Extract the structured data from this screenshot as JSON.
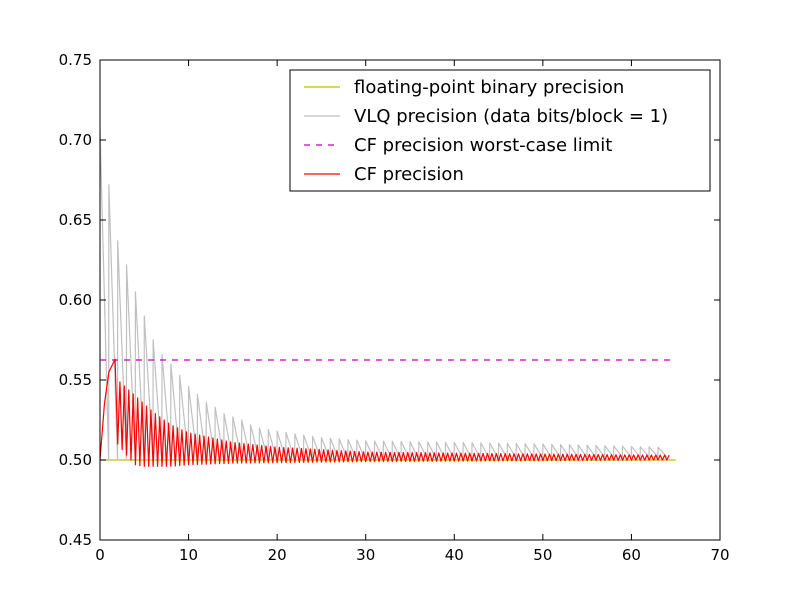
{
  "chart_data": {
    "type": "line",
    "title": "",
    "xlabel": "",
    "ylabel": "",
    "xlim": [
      0,
      70
    ],
    "ylim": [
      0.45,
      0.75
    ],
    "x_ticks": [
      "0",
      "10",
      "20",
      "30",
      "40",
      "50",
      "60",
      "70"
    ],
    "y_ticks": [
      "0.45",
      "0.50",
      "0.55",
      "0.60",
      "0.65",
      "0.70",
      "0.75"
    ],
    "grid": false,
    "legend_position": "top-right",
    "series": [
      {
        "name": "floating-point binary precision",
        "color": "#bfbf00",
        "style": "solid",
        "points": [
          [
            0,
            0.5
          ],
          [
            65,
            0.5
          ]
        ]
      },
      {
        "name": "VLQ precision (data bits/block = 1)",
        "color": "#c0c0c0",
        "style": "solid",
        "sawtooth": {
          "x_start": 0,
          "x_end": 63,
          "peak_at_0": 0.707,
          "peak_at_2": 0.637,
          "trough": 0.5,
          "peaks": [
            [
              0,
              0.707
            ],
            [
              2,
              0.637
            ],
            [
              3,
              0.622
            ],
            [
              4,
              0.605
            ],
            [
              5,
              0.59
            ],
            [
              6,
              0.575
            ],
            [
              7,
              0.566
            ],
            [
              8,
              0.56
            ],
            [
              9,
              0.553
            ],
            [
              10,
              0.546
            ],
            [
              11,
              0.541
            ],
            [
              12,
              0.536
            ],
            [
              13,
              0.533
            ],
            [
              14,
              0.529
            ],
            [
              15,
              0.527
            ],
            [
              16,
              0.525
            ],
            [
              17,
              0.522
            ],
            [
              18,
              0.52
            ],
            [
              19,
              0.519
            ],
            [
              20,
              0.518
            ],
            [
              25,
              0.514
            ],
            [
              30,
              0.512
            ],
            [
              40,
              0.511
            ],
            [
              50,
              0.51
            ],
            [
              63,
              0.508
            ]
          ],
          "trough_rise": [
            [
              0,
              0.5
            ],
            [
              30,
              0.5
            ],
            [
              63,
              0.502
            ]
          ]
        }
      },
      {
        "name": "CF precision worst-case limit",
        "color": "#bf00bf",
        "style": "dashed",
        "points": [
          [
            0,
            0.5625
          ],
          [
            65,
            0.5625
          ]
        ]
      },
      {
        "name": "CF precision",
        "color": "#ff0000",
        "style": "solid",
        "oscillation": {
          "start": [
            0,
            0.5
          ],
          "rise_peak": [
            1.7,
            0.563
          ],
          "x_end": 64,
          "amplitude_upper": [
            [
              2,
              0.55
            ],
            [
              3,
              0.545
            ],
            [
              4,
              0.54
            ],
            [
              5,
              0.535
            ],
            [
              6,
              0.53
            ],
            [
              8,
              0.522
            ],
            [
              10,
              0.517
            ],
            [
              15,
              0.511
            ],
            [
              20,
              0.508
            ],
            [
              30,
              0.505
            ],
            [
              45,
              0.504
            ],
            [
              64,
              0.503
            ]
          ],
          "amplitude_lower": [
            [
              2,
              0.51
            ],
            [
              3,
              0.503
            ],
            [
              4,
              0.497
            ],
            [
              5,
              0.496
            ],
            [
              6,
              0.496
            ],
            [
              8,
              0.496
            ],
            [
              10,
              0.497
            ],
            [
              15,
              0.498
            ],
            [
              30,
              0.499
            ],
            [
              64,
              0.5
            ]
          ]
        }
      }
    ]
  }
}
